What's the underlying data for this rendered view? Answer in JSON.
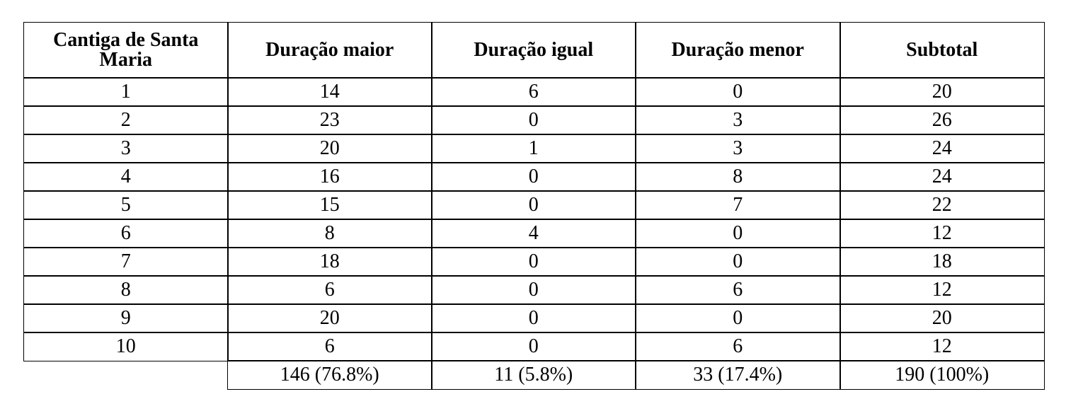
{
  "table": {
    "headers": [
      "Cantiga de Santa Maria",
      "Duração maior",
      "Duração igual",
      "Duração menor",
      "Subtotal"
    ],
    "rows": [
      [
        1,
        14,
        6,
        0,
        20
      ],
      [
        2,
        23,
        0,
        3,
        26
      ],
      [
        3,
        20,
        1,
        3,
        24
      ],
      [
        4,
        16,
        0,
        8,
        24
      ],
      [
        5,
        15,
        0,
        7,
        22
      ],
      [
        6,
        8,
        4,
        0,
        12
      ],
      [
        7,
        18,
        0,
        0,
        18
      ],
      [
        8,
        6,
        0,
        6,
        12
      ],
      [
        9,
        20,
        0,
        0,
        20
      ],
      [
        10,
        6,
        0,
        6,
        12
      ]
    ],
    "totals": [
      "146 (76.8%)",
      "11 (5.8%)",
      "33 (17.4%)",
      "190 (100%)"
    ]
  }
}
